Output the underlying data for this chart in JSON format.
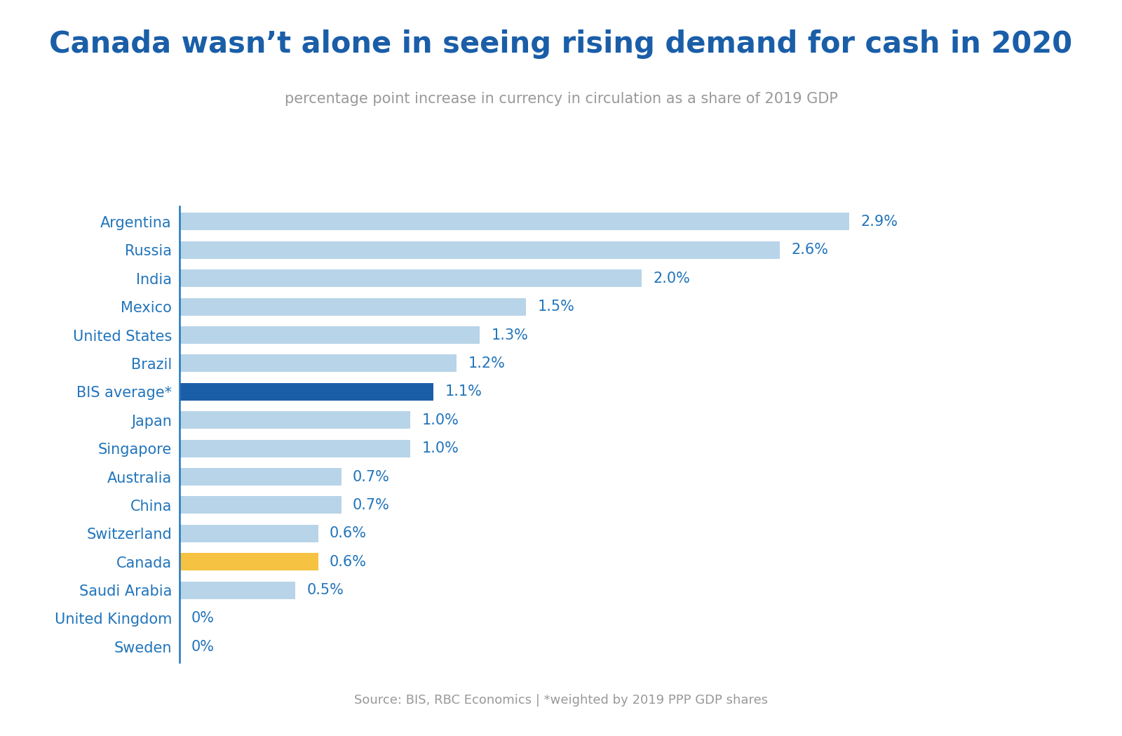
{
  "title": "Canada wasn’t alone in seeing rising demand for cash in 2020",
  "subtitle": "percentage point increase in currency in circulation as a share of 2019 GDP",
  "source": "Source: BIS, RBC Economics | *weighted by 2019 PPP GDP shares",
  "categories": [
    "Argentina",
    "Russia",
    "India",
    "Mexico",
    "United States",
    "Brazil",
    "BIS average*",
    "Japan",
    "Singapore",
    "Australia",
    "China",
    "Switzerland",
    "Canada",
    "Saudi Arabia",
    "United Kingdom",
    "Sweden"
  ],
  "values": [
    2.9,
    2.6,
    2.0,
    1.5,
    1.3,
    1.2,
    1.1,
    1.0,
    1.0,
    0.7,
    0.7,
    0.6,
    0.6,
    0.5,
    0.0,
    0.0
  ],
  "bar_colors": [
    "#b8d4e8",
    "#b8d4e8",
    "#b8d4e8",
    "#b8d4e8",
    "#b8d4e8",
    "#b8d4e8",
    "#1a5ea8",
    "#b8d4e8",
    "#b8d4e8",
    "#b8d4e8",
    "#b8d4e8",
    "#b8d4e8",
    "#f5c242",
    "#b8d4e8",
    "#b8d4e8",
    "#b8d4e8"
  ],
  "value_labels": [
    "2.9%",
    "2.6%",
    "2.0%",
    "1.5%",
    "1.3%",
    "1.2%",
    "1.1%",
    "1.0%",
    "1.0%",
    "0.7%",
    "0.7%",
    "0.6%",
    "0.6%",
    "0.5%",
    "0%",
    "0%"
  ],
  "title_color": "#1a5ea8",
  "subtitle_color": "#999999",
  "label_color": "#2275bb",
  "source_color": "#999999",
  "background_color": "#ffffff",
  "spine_color": "#2275bb",
  "title_fontsize": 30,
  "subtitle_fontsize": 15,
  "bar_label_fontsize": 15,
  "ytick_fontsize": 15,
  "source_fontsize": 13,
  "xlim": [
    0,
    3.4
  ]
}
